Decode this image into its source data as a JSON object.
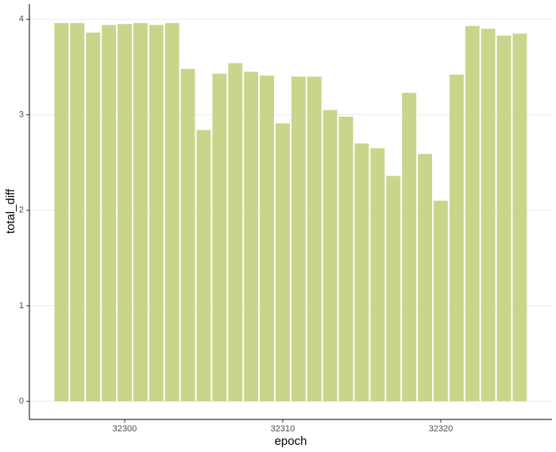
{
  "chart_data": {
    "type": "bar",
    "x": [
      32296,
      32297,
      32298,
      32299,
      32300,
      32301,
      32302,
      32303,
      32304,
      32305,
      32306,
      32307,
      32308,
      32309,
      32310,
      32311,
      32312,
      32313,
      32314,
      32315,
      32316,
      32317,
      32318,
      32319,
      32320,
      32321,
      32322,
      32323,
      32324,
      32325
    ],
    "values": [
      3.96,
      3.96,
      3.86,
      3.94,
      3.95,
      3.96,
      3.94,
      3.96,
      3.48,
      2.84,
      3.43,
      3.54,
      3.45,
      3.41,
      2.91,
      3.4,
      3.4,
      3.05,
      2.98,
      2.7,
      2.65,
      2.36,
      3.23,
      2.59,
      2.1,
      3.42,
      3.93,
      3.9,
      3.83,
      3.85
    ],
    "color": "#c8d68b",
    "x_label": "epoch",
    "y_label": "total_diff",
    "xlim": [
      32293.97,
      32327.04
    ],
    "xticks": [
      32300,
      32310,
      32320
    ],
    "ylim": [
      -0.19,
      4.16
    ],
    "yticks": [
      0,
      1,
      2,
      3,
      4
    ],
    "grid": true
  }
}
